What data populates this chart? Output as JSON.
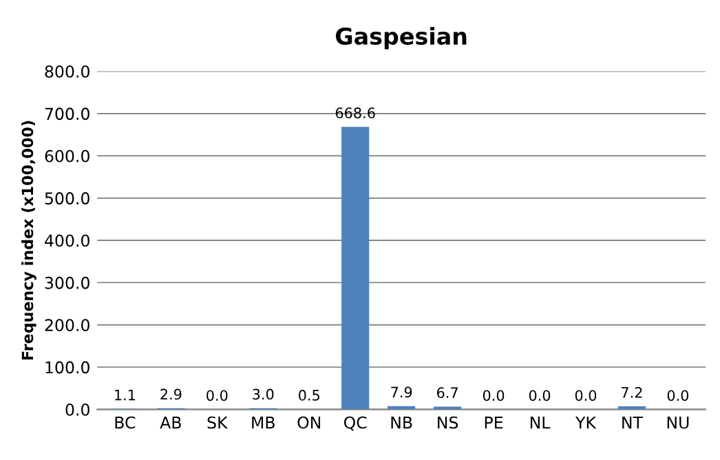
{
  "chart_data": {
    "type": "bar",
    "title": "Gaspesian",
    "ylabel": "Frequency index (x100,000)",
    "categories": [
      "BC",
      "AB",
      "SK",
      "MB",
      "ON",
      "QC",
      "NB",
      "NS",
      "PE",
      "NL",
      "YK",
      "NT",
      "NU"
    ],
    "values": [
      1.1,
      2.9,
      0.0,
      3.0,
      0.5,
      668.6,
      7.9,
      6.7,
      0.0,
      0.0,
      0.0,
      7.2,
      0.0
    ],
    "value_labels": [
      "1.1",
      "2.9",
      "0.0",
      "3.0",
      "0.5",
      "668.6",
      "7.9",
      "6.7",
      "0.0",
      "0.0",
      "0.0",
      "7.2",
      "0.0"
    ],
    "color": "#4f81bd",
    "ylim": [
      0,
      800
    ],
    "yticks": [
      {
        "value": 0,
        "label": "0.0"
      },
      {
        "value": 100,
        "label": "100.0"
      },
      {
        "value": 200,
        "label": "200.0"
      },
      {
        "value": 300,
        "label": "300.0"
      },
      {
        "value": 400,
        "label": "400.0"
      },
      {
        "value": 500,
        "label": "500.0"
      },
      {
        "value": 600,
        "label": "600.0"
      },
      {
        "value": 700,
        "label": "700.0"
      },
      {
        "value": 800,
        "label": "800.0"
      }
    ],
    "grid": "y",
    "legend": false
  }
}
